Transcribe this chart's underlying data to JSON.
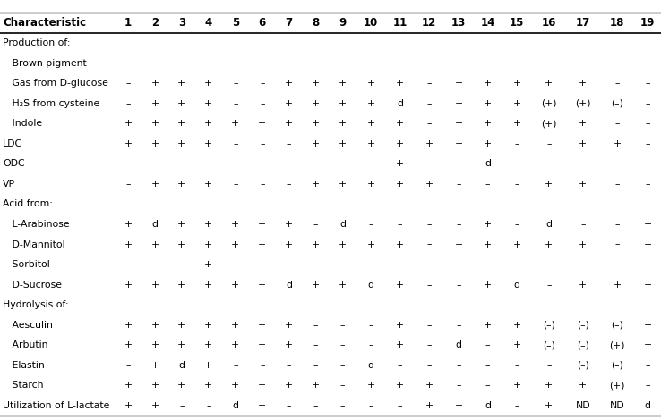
{
  "header_cols": [
    "Characteristic",
    "1",
    "2",
    "3",
    "4",
    "5",
    "6",
    "7",
    "8",
    "9",
    "10",
    "11",
    "12",
    "13",
    "14",
    "15",
    "16",
    "17",
    "18",
    "19"
  ],
  "rows": [
    [
      "Production of:",
      "",
      "",
      "",
      "",
      "",
      "",
      "",
      "",
      "",
      "",
      "",
      "",
      "",
      "",
      "",
      "",
      "",
      "",
      ""
    ],
    [
      "   Brown pigment",
      "–",
      "–",
      "–",
      "–",
      "–",
      "+",
      "–",
      "–",
      "–",
      "–",
      "–",
      "–",
      "–",
      "–",
      "–",
      "–",
      "–",
      "–",
      "–"
    ],
    [
      "   Gas from D-glucose",
      "–",
      "+",
      "+",
      "+",
      "–",
      "–",
      "+",
      "+",
      "+",
      "+",
      "+",
      "–",
      "+",
      "+",
      "+",
      "+",
      "+",
      "–",
      "–"
    ],
    [
      "   H₂S from cysteine",
      "–",
      "+",
      "+",
      "+",
      "–",
      "–",
      "+",
      "+",
      "+",
      "+",
      "d",
      "–",
      "+",
      "+",
      "+",
      "(+)",
      "(+)",
      "(–)",
      "–"
    ],
    [
      "   Indole",
      "+",
      "+",
      "+",
      "+",
      "+",
      "+",
      "+",
      "+",
      "+",
      "+",
      "+",
      "–",
      "+",
      "+",
      "+",
      "(+)",
      "+",
      "–",
      "–"
    ],
    [
      "LDC",
      "+",
      "+",
      "+",
      "+",
      "–",
      "–",
      "–",
      "+",
      "+",
      "+",
      "+",
      "+",
      "+",
      "+",
      "–",
      "–",
      "+",
      "+",
      "–"
    ],
    [
      "ODC",
      "–",
      "–",
      "–",
      "–",
      "–",
      "–",
      "–",
      "–",
      "–",
      "–",
      "+",
      "–",
      "–",
      "d",
      "–",
      "–",
      "–",
      "–",
      "–"
    ],
    [
      "VP",
      "–",
      "+",
      "+",
      "+",
      "–",
      "–",
      "–",
      "+",
      "+",
      "+",
      "+",
      "+",
      "–",
      "–",
      "–",
      "+",
      "+",
      "–",
      "–"
    ],
    [
      "Acid from:",
      "",
      "",
      "",
      "",
      "",
      "",
      "",
      "",
      "",
      "",
      "",
      "",
      "",
      "",
      "",
      "",
      "",
      "",
      ""
    ],
    [
      "   L-Arabinose",
      "+",
      "d",
      "+",
      "+",
      "+",
      "+",
      "+",
      "–",
      "d",
      "–",
      "–",
      "–",
      "–",
      "+",
      "–",
      "d",
      "–",
      "–",
      "+"
    ],
    [
      "   D-Mannitol",
      "+",
      "+",
      "+",
      "+",
      "+",
      "+",
      "+",
      "+",
      "+",
      "+",
      "+",
      "–",
      "+",
      "+",
      "+",
      "+",
      "+",
      "–",
      "+"
    ],
    [
      "   Sorbitol",
      "–",
      "–",
      "–",
      "+",
      "–",
      "–",
      "–",
      "–",
      "–",
      "–",
      "–",
      "–",
      "–",
      "–",
      "–",
      "–",
      "–",
      "–",
      "–"
    ],
    [
      "   D-Sucrose",
      "+",
      "+",
      "+",
      "+",
      "+",
      "+",
      "d",
      "+",
      "+",
      "d",
      "+",
      "–",
      "–",
      "+",
      "d",
      "–",
      "+",
      "+",
      "+"
    ],
    [
      "Hydrolysis of:",
      "",
      "",
      "",
      "",
      "",
      "",
      "",
      "",
      "",
      "",
      "",
      "",
      "",
      "",
      "",
      "",
      "",
      "",
      ""
    ],
    [
      "   Aesculin",
      "+",
      "+",
      "+",
      "+",
      "+",
      "+",
      "+",
      "–",
      "–",
      "–",
      "+",
      "–",
      "–",
      "+",
      "+",
      "(–)",
      "(–)",
      "(–)",
      "+"
    ],
    [
      "   Arbutin",
      "+",
      "+",
      "+",
      "+",
      "+",
      "+",
      "+",
      "–",
      "–",
      "–",
      "+",
      "–",
      "d",
      "–",
      "+",
      "(–)",
      "(–)",
      "(+)",
      "+"
    ],
    [
      "   Elastin",
      "–",
      "+",
      "d",
      "+",
      "–",
      "–",
      "–",
      "–",
      "–",
      "d",
      "–",
      "–",
      "–",
      "–",
      "–",
      "–",
      "(–)",
      "(–)",
      "–"
    ],
    [
      "   Starch",
      "+",
      "+",
      "+",
      "+",
      "+",
      "+",
      "+",
      "+",
      "–",
      "+",
      "+",
      "+",
      "–",
      "–",
      "+",
      "+",
      "+",
      "(+)",
      "–"
    ],
    [
      "Utilization of L-lactate",
      "+",
      "+",
      "–",
      "–",
      "d",
      "+",
      "–",
      "–",
      "–",
      "–",
      "–",
      "+",
      "+",
      "d",
      "–",
      "+",
      "ND",
      "ND",
      "d"
    ]
  ],
  "section_rows": [
    0,
    8,
    13
  ],
  "font_size": 7.8,
  "header_font_size": 8.5,
  "col_widths": [
    2.35,
    0.55,
    0.55,
    0.55,
    0.55,
    0.55,
    0.55,
    0.55,
    0.55,
    0.55,
    0.6,
    0.6,
    0.6,
    0.6,
    0.6,
    0.6,
    0.7,
    0.7,
    0.7,
    0.55
  ]
}
